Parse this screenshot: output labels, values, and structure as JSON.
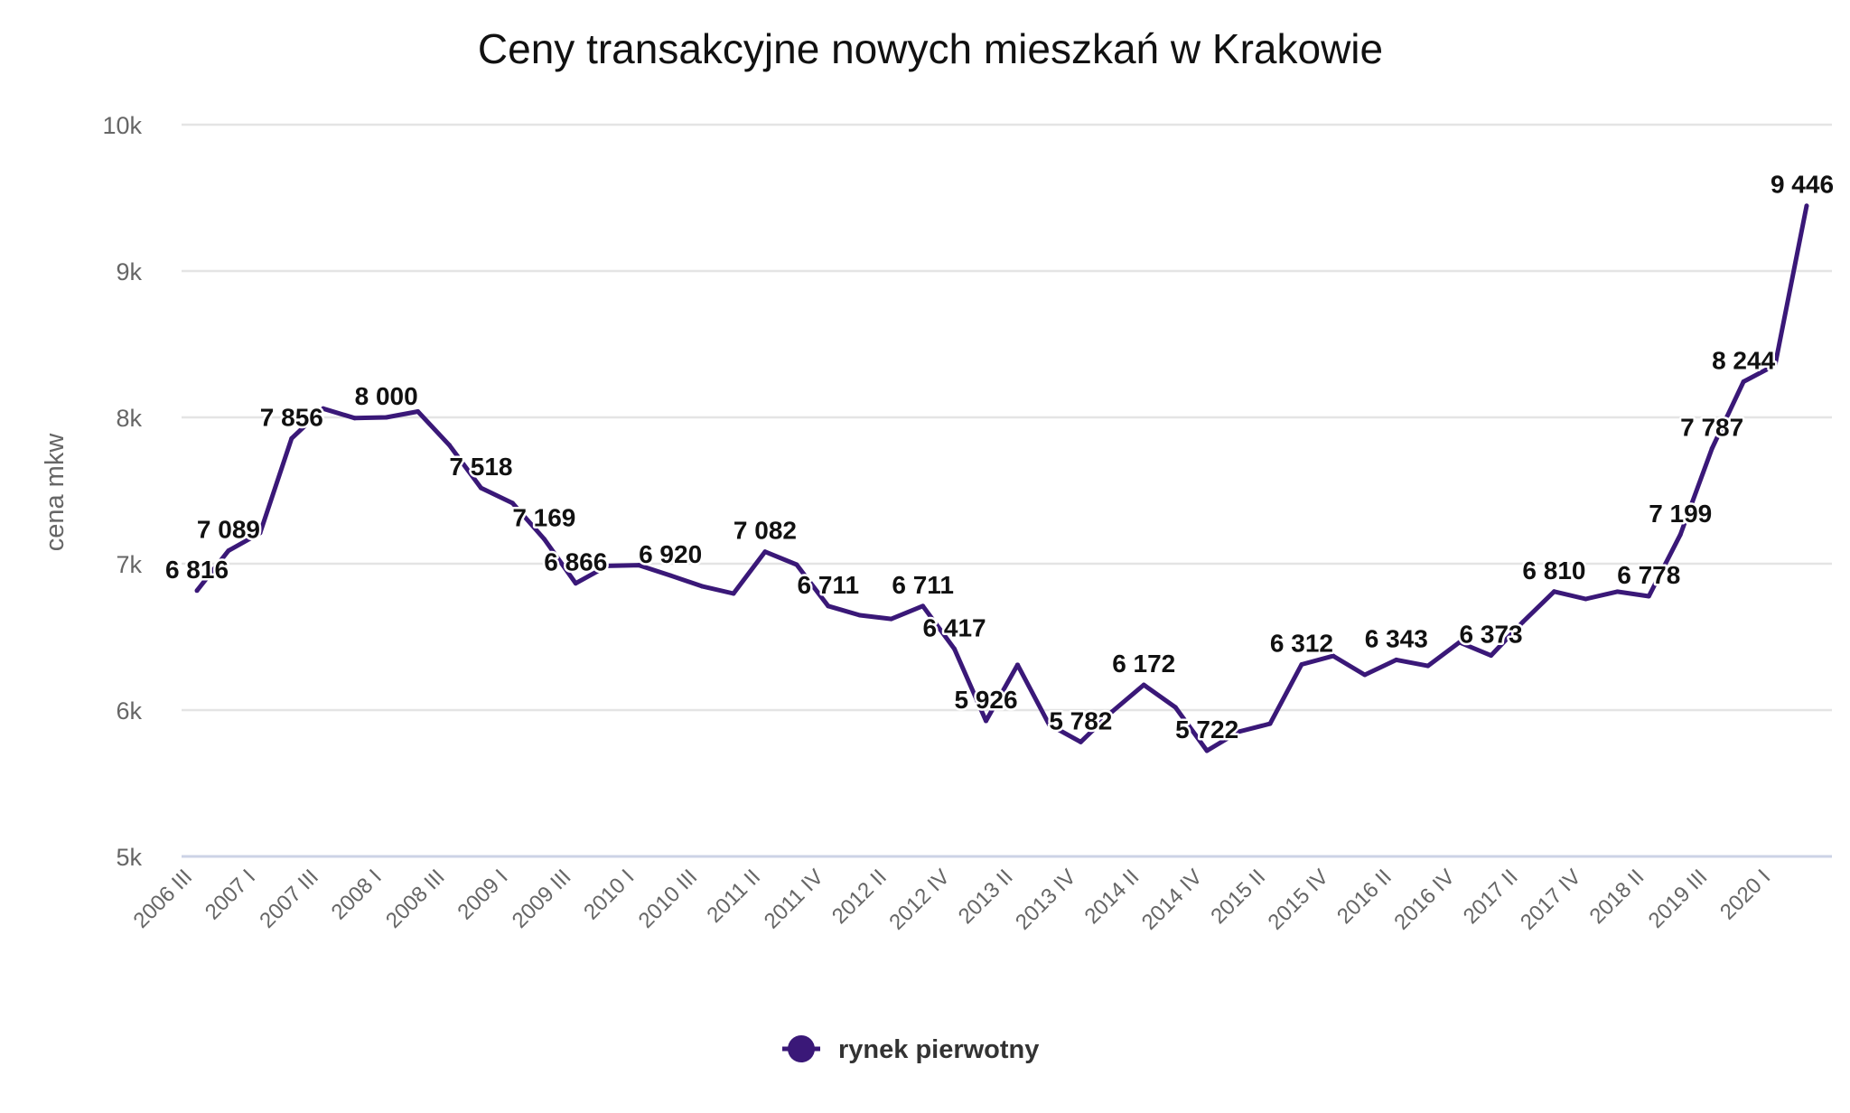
{
  "chart_data": {
    "type": "line",
    "title": "Ceny transakcyjne nowych mieszkań w Krakowie",
    "xlabel": "",
    "ylabel": "cena mkw",
    "ylim": [
      5000,
      10000
    ],
    "y_ticks": [
      "5k",
      "6k",
      "7k",
      "8k",
      "9k",
      "10k"
    ],
    "y_tick_values": [
      5000,
      6000,
      7000,
      8000,
      9000,
      10000
    ],
    "grid": true,
    "legend_position": "bottom",
    "tick_labels": [
      "2006 III",
      "2007 I",
      "2007 III",
      "2008 I",
      "2008 III",
      "2009 I",
      "2009 III",
      "2010 I",
      "2010 III",
      "2011 II",
      "2011 IV",
      "2012 II",
      "2012 IV",
      "2013 II",
      "2013 IV",
      "2014 II",
      "2014 IV",
      "2015 II",
      "2015 IV",
      "2016 II",
      "2016 IV",
      "2017 II",
      "2017 IV",
      "2018 II",
      "2019 III",
      "2020 I"
    ],
    "series": [
      {
        "name": "rynek pierwotny",
        "color": "#3a1878",
        "values": [
          6816,
          7089,
          7210,
          7856,
          8060,
          7995,
          8000,
          8040,
          7810,
          7518,
          7414,
          7169,
          6866,
          6985,
          6990,
          6920,
          6846,
          6796,
          7082,
          6994,
          6711,
          6648,
          6623,
          6711,
          6417,
          5926,
          6309,
          5901,
          5782,
          5990,
          6172,
          6019,
          5722,
          5852,
          5907,
          6312,
          6370,
          6241,
          6343,
          6302,
          6463,
          6373,
          6600,
          6810,
          6759,
          6809,
          6778,
          7199,
          7787,
          8244,
          8358,
          9446
        ],
        "data_labels": [
          "6 816",
          "7 089",
          "",
          "7 856",
          "",
          "",
          "8 000",
          "",
          "",
          "7 518",
          "",
          "7 169",
          "6 866",
          "",
          "",
          "6 920",
          "",
          "",
          "7 082",
          "",
          "6 711",
          "",
          "",
          "6 711",
          "6 417",
          "5 926",
          "",
          "",
          "5 782",
          "",
          "6 172",
          "",
          "5 722",
          "",
          "",
          "6 312",
          "",
          "",
          "6 343",
          "",
          "",
          "6 373",
          "",
          "6 810",
          "",
          "",
          "6 778",
          "7 199",
          "7 787",
          "8 244",
          "",
          "9 446"
        ]
      }
    ]
  }
}
